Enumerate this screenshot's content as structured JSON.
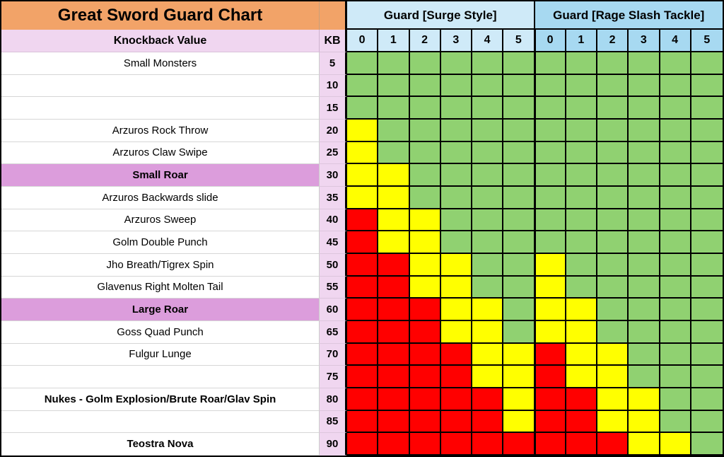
{
  "colors": {
    "orange": "#f2a368",
    "light-pink": "#f0d6f0",
    "plum": "#dc9ddc",
    "light-blue": "#cfeaf8",
    "medium-blue": "#a7d9f1",
    "grid-line": "#000000",
    "soft-line": "#cccccc"
  },
  "chart_data": {
    "type": "heatmap",
    "title": "Great Sword Guard Chart",
    "row_header": "Knockback Value",
    "kb_header": "KB",
    "col_groups": [
      {
        "label": "Guard [Surge Style]",
        "columns": [
          "0",
          "1",
          "2",
          "3",
          "4",
          "5"
        ]
      },
      {
        "label": "Guard [Rage Slash Tackle]",
        "columns": [
          "0",
          "1",
          "2",
          "3",
          "4",
          "5"
        ]
      }
    ],
    "palette": {
      "G": "#90d171",
      "Y": "#ffff00",
      "R": "#ff0000"
    },
    "rows": [
      {
        "kb": "5",
        "label": "Small Monsters",
        "emphasis": "normal",
        "cells": "GGGGGGGGGGGG"
      },
      {
        "kb": "10",
        "label": "",
        "emphasis": "normal",
        "cells": "GGGGGGGGGGGG"
      },
      {
        "kb": "15",
        "label": "",
        "emphasis": "normal",
        "cells": "GGGGGGGGGGGG"
      },
      {
        "kb": "20",
        "label": "Arzuros Rock Throw",
        "emphasis": "normal",
        "cells": "YGGGGGGGGGGG"
      },
      {
        "kb": "25",
        "label": "Arzuros Claw Swipe",
        "emphasis": "normal",
        "cells": "YGGGGGGGGGGG"
      },
      {
        "kb": "30",
        "label": "Small Roar",
        "emphasis": "highlight",
        "cells": "YYGGGGGGGGGG"
      },
      {
        "kb": "35",
        "label": "Arzuros Backwards slide",
        "emphasis": "normal",
        "cells": "YYGGGGGGGGGG"
      },
      {
        "kb": "40",
        "label": "Arzuros Sweep",
        "emphasis": "normal",
        "cells": "RYYGGGGGGGGG"
      },
      {
        "kb": "45",
        "label": "Golm Double Punch",
        "emphasis": "normal",
        "cells": "RYYGGGGGGGGG"
      },
      {
        "kb": "50",
        "label": "Jho Breath/Tigrex Spin",
        "emphasis": "normal",
        "cells": "RRYYGGYGGGGG"
      },
      {
        "kb": "55",
        "label": "Glavenus Right Molten Tail",
        "emphasis": "normal",
        "cells": "RRYYGGYGGGGG"
      },
      {
        "kb": "60",
        "label": "Large Roar",
        "emphasis": "highlight",
        "cells": "RRRYYGYYGGGG"
      },
      {
        "kb": "65",
        "label": "Goss Quad Punch",
        "emphasis": "normal",
        "cells": "RRRYYGYYGGGG"
      },
      {
        "kb": "70",
        "label": "Fulgur Lunge",
        "emphasis": "normal",
        "cells": "RRRRYYRYYGGG"
      },
      {
        "kb": "75",
        "label": "",
        "emphasis": "normal",
        "cells": "RRRRYYRYYGGG"
      },
      {
        "kb": "80",
        "label": "Nukes - Golm Explosion/Brute Roar/Glav Spin",
        "emphasis": "bold",
        "cells": "RRRRRYRRYYGG"
      },
      {
        "kb": "85",
        "label": "",
        "emphasis": "normal",
        "cells": "RRRRRYRRYYGG"
      },
      {
        "kb": "90",
        "label": "Teostra Nova",
        "emphasis": "bold",
        "cells": "RRRRRRRRRYYG"
      }
    ]
  }
}
